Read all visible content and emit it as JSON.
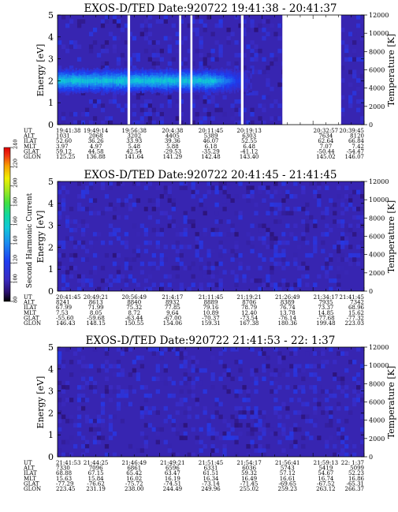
{
  "chart_data": [
    {
      "type": "heatmap",
      "title": "EXOS-D/TED   Date:920722  19:41:38 - 20:41:37",
      "ylabel": "Energy [eV]",
      "ylabel_right": "Temperature [K]",
      "ylim": [
        0,
        5
      ],
      "yticks": [
        "0",
        "1",
        "2",
        "3",
        "4",
        "5"
      ],
      "ylim_right": [
        0,
        12000
      ],
      "yticks_right": [
        "0",
        "2000",
        "4000",
        "6000",
        "8000",
        "10000",
        "12000"
      ],
      "x_time_range": [
        "19:41:38",
        "20:41:37"
      ],
      "data_gaps_min": [
        [
          13.7,
          14.2
        ],
        [
          23.8,
          24.2
        ],
        [
          26.0,
          26.4
        ],
        [
          35.9,
          36.4
        ],
        [
          44.0,
          55.5
        ]
      ],
      "emission_band": {
        "energy_center_eV": 2.0,
        "energy_half_width_eV": 0.55,
        "level": 165,
        "tail_to_minutes": 38
      },
      "background_level": 100,
      "params_rows": [
        "UT",
        "ALT",
        "ILAT",
        "MLT",
        "GLAT",
        "GLON"
      ],
      "params_cols": [
        [
          "19:41:38",
          "1031",
          "52.60",
          "3.97",
          "59.12",
          "125.25"
        ],
        [
          "19:49:14",
          "2068",
          "36.26",
          "4.97",
          "44.58",
          "136.88"
        ],
        [
          "19:56:38",
          "3202",
          "33.93",
          "5.48",
          "42.54",
          "141.64"
        ],
        [
          "20:4:38",
          "4405",
          "39.36",
          "5.88",
          "-29.53",
          "141.29"
        ],
        [
          "20:11:45",
          "5389",
          "46.07",
          "6.18",
          "-35.29",
          "142.48"
        ],
        [
          "20:19:13",
          "6303",
          "52.55",
          "6.48",
          "-41.12",
          "143.40"
        ],
        [
          "",
          "",
          " ",
          "",
          "",
          ""
        ],
        [
          "20:32:57",
          "7634",
          "62.64",
          "7.07",
          "-50.44",
          "145.02"
        ],
        [
          "20:39:45",
          "8120",
          "66.84",
          "7.42",
          "-54.47",
          "146.07"
        ]
      ]
    },
    {
      "type": "heatmap",
      "title": "EXOS-D/TED   Date:920722  20:41:45 - 21:41:45",
      "ylabel": "Energy [eV]",
      "ylabel_right": "Temperature [K]",
      "ylim": [
        0,
        5
      ],
      "yticks": [
        "0",
        "1",
        "2",
        "3",
        "4",
        "5"
      ],
      "ylim_right": [
        0,
        12000
      ],
      "yticks_right": [
        "0",
        "2000",
        "4000",
        "6000",
        "8000",
        "10000",
        "12000"
      ],
      "x_time_range": [
        "20:41:45",
        "21:41:45"
      ],
      "background_level": 100,
      "params_rows": [
        "UT",
        "ALT",
        "ILAT",
        "MLT",
        "GLAT",
        "GLON"
      ],
      "params_cols": [
        [
          "20:41:45",
          "8241",
          "67.99",
          "7.53",
          "-55.60",
          "146.43"
        ],
        [
          "20:49:21",
          "8613",
          "71.99",
          "8.05",
          "-59.68",
          "148.15"
        ],
        [
          "20:56:49",
          "8840",
          "75.32",
          "8.72",
          "-63.44",
          "150.55"
        ],
        [
          "21:4:17",
          "8932",
          "77.85",
          "9.64",
          "-67.00",
          "154.06"
        ],
        [
          "21:11:45",
          "8889",
          "79.16",
          "10.89",
          "-70.37",
          "159.31"
        ],
        [
          "21:19:21",
          "8706",
          "78.79",
          "12.40",
          "-73.54",
          "167.38"
        ],
        [
          "21:26:49",
          "8389",
          "76.74",
          "13.78",
          "-76.14",
          "180.36"
        ],
        [
          "21:34:17",
          "7935",
          "73.37",
          "14.85",
          "-77.68",
          "199.48"
        ],
        [
          "21:41:45",
          "7342",
          "68.96",
          "15.62",
          "-77.32",
          "223.03"
        ]
      ]
    },
    {
      "type": "heatmap",
      "title": "EXOS-D/TED   Date:920722  21:41:53 - 22: 1:37",
      "ylabel": "Energy [eV]",
      "ylabel_right": "Temperature [K]",
      "ylim": [
        0,
        5
      ],
      "yticks": [
        "0",
        "1",
        "2",
        "3",
        "4",
        "5"
      ],
      "ylim_right": [
        0,
        12000
      ],
      "yticks_right": [
        "0",
        "2000",
        "4000",
        "6000",
        "8000",
        "10000",
        "12000"
      ],
      "x_time_range": [
        "21:41:53",
        "22:1:37"
      ],
      "background_level": 100,
      "params_rows": [
        "UT",
        "ALT",
        "ILAT",
        "MLT",
        "GLAT",
        "GLON"
      ],
      "params_cols": [
        [
          "21:41:53",
          "7330",
          "68.88",
          "15.63",
          "-77.29",
          "223.45"
        ],
        [
          "21:44:25",
          "7096",
          "67.15",
          "15.84",
          "-76.62",
          "231.19"
        ],
        [
          "21:46:49",
          "6861",
          "65.42",
          "16.02",
          "-75.72",
          "238.00"
        ],
        [
          "21:49:21",
          "6596",
          "63.47",
          "16.19",
          "-74.51",
          "244.49"
        ],
        [
          "21:51:45",
          "6331",
          "61.51",
          "16.34",
          "-73.14",
          "249.96"
        ],
        [
          "21:54:17",
          "6036",
          "59.32",
          "16.49",
          "-71.45",
          "255.02"
        ],
        [
          "21:56:41",
          "5743",
          "57.12",
          "16.61",
          "-69.65",
          "259.23"
        ],
        [
          "21:59:13",
          "5419",
          "54.67",
          "16.74",
          "-67.52",
          "263.12"
        ],
        [
          "22: 1:37",
          "5099",
          "52.23",
          "16.86",
          "-65.31",
          "266.37"
        ]
      ]
    }
  ],
  "colorbar": {
    "label": "Second Harmonic Current",
    "ticks": [
      "80",
      "100",
      "120",
      "140",
      "160",
      "180",
      "200",
      "220",
      "240"
    ],
    "range": [
      80,
      240
    ]
  }
}
